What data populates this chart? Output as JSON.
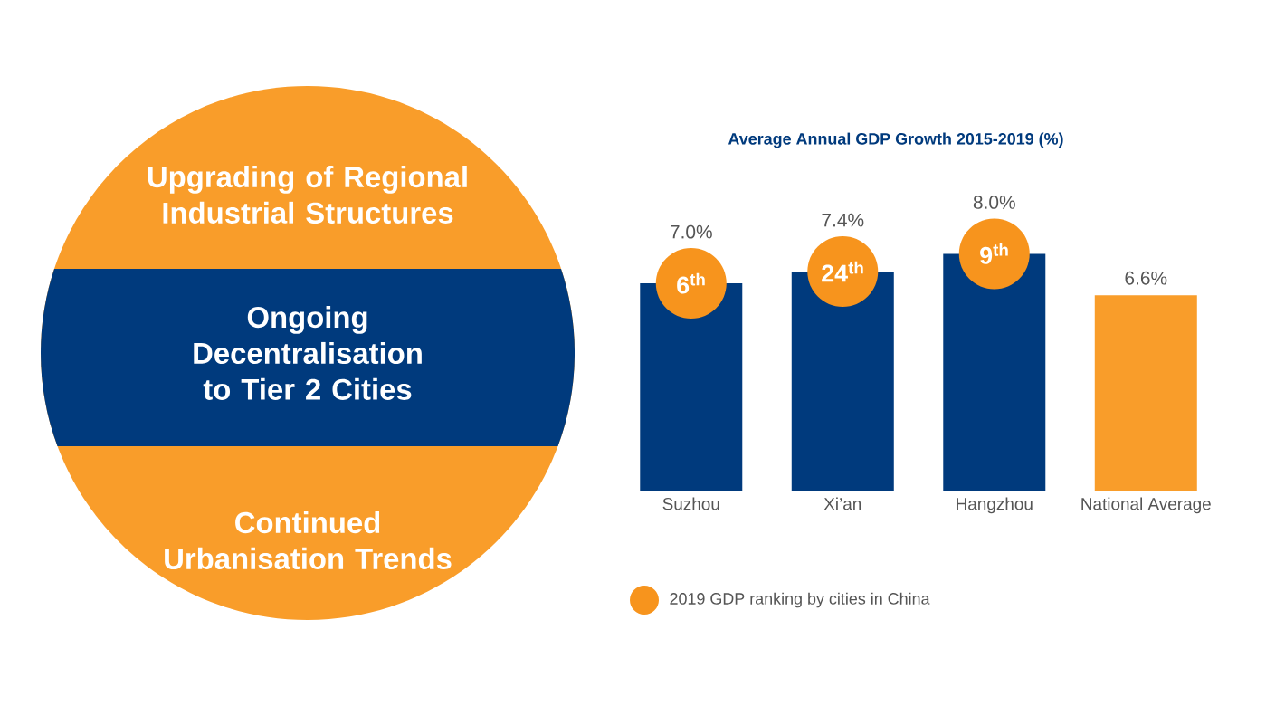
{
  "chart_data": [
    {
      "type": "other",
      "annotations": [
        "Upgrading of Regional Industrial Structures",
        "Ongoing Decentralisation to Tier 2 Cities",
        "Continued Urbanisation Trends"
      ]
    },
    {
      "type": "bar",
      "title": "Average Annual GDP Growth 2015-2019 (%)",
      "categories": [
        "Suzhou",
        "Xi’an",
        "Hangzhou",
        "National Average"
      ],
      "series": [
        {
          "values": [
            7.0,
            7.4,
            8.0,
            6.6
          ],
          "colors": [
            "#003a7d",
            "#003a7d",
            "#003a7d",
            "#f99d2a"
          ],
          "value_labels": [
            "7.0%",
            "7.4%",
            "8.0%",
            "6.6%"
          ]
        }
      ],
      "annotations": [
        {
          "text": "6$^{th}$",
          "x": "Suzhou"
        },
        {
          "text": "24$^{th}$",
          "x": "Xi’an"
        },
        {
          "text": "9$^{th}$",
          "x": "Hangzhou"
        },
        "2019 GDP ranking by cities in China"
      ]
    }
  ]
}
